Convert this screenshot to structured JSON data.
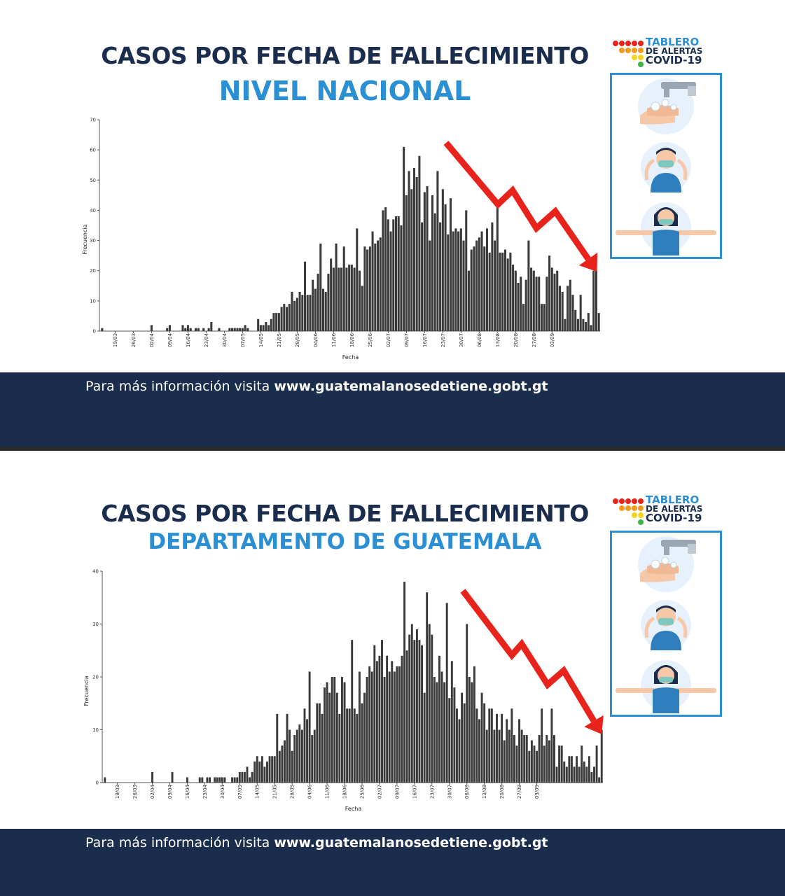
{
  "panels": [
    {
      "title": "CASOS POR FECHA DE FALLECIMIENTO",
      "subtitle": "NIVEL NACIONAL",
      "logo": {
        "line1": "TABLERO",
        "line2": "DE ALERTAS",
        "line3": "COVID-19"
      },
      "icons": [
        "hand-washing-icon",
        "face-mask-icon",
        "social-distancing-icon"
      ],
      "footer": {
        "prefix": "Para más información visita ",
        "url": "www.guatemalanosedetiene.gobt.gt"
      }
    },
    {
      "title": "CASOS POR FECHA DE FALLECIMIENTO",
      "subtitle": "DEPARTAMENTO DE GUATEMALA",
      "logo": {
        "line1": "TABLERO",
        "line2": "DE ALERTAS",
        "line3": "COVID-19"
      },
      "icons": [
        "hand-washing-icon",
        "face-mask-icon",
        "social-distancing-icon"
      ],
      "footer": {
        "prefix": "Para más información visita ",
        "url": "www.guatemalanosedetiene.gobt.gt"
      }
    }
  ],
  "colors": {
    "navy": "#1b2d4c",
    "blue": "#2b8fd3",
    "bar": "#3a3a3a",
    "arrow": "#e8231b"
  },
  "chart_data": [
    {
      "type": "bar",
      "title": "NIVEL NACIONAL",
      "xlabel": "Fecha",
      "ylabel": "Frecuencia",
      "ylim": [
        0,
        70
      ],
      "yticks": [
        0,
        10,
        20,
        30,
        40,
        50,
        60,
        70
      ],
      "x_start": "2020-03-14",
      "xtick_labels": [
        "19/03",
        "26/03",
        "02/04",
        "09/04",
        "16/04",
        "23/04",
        "30/04",
        "07/05",
        "14/05",
        "21/05",
        "28/05",
        "04/06",
        "11/06",
        "18/06",
        "25/06",
        "02/07",
        "09/07",
        "16/07",
        "23/07",
        "30/07",
        "06/08",
        "13/08",
        "20/08",
        "27/08",
        "03/09"
      ],
      "values": [
        1,
        0,
        0,
        0,
        0,
        0,
        0,
        0,
        0,
        0,
        0,
        0,
        0,
        0,
        0,
        0,
        0,
        0,
        0,
        2,
        0,
        0,
        0,
        0,
        0,
        1,
        2,
        0,
        0,
        0,
        0,
        2,
        1,
        2,
        1,
        0,
        1,
        1,
        0,
        1,
        0,
        1,
        3,
        0,
        0,
        1,
        0,
        0,
        0,
        1,
        1,
        1,
        1,
        1,
        1,
        2,
        1,
        0,
        0,
        0,
        4,
        2,
        2,
        3,
        2,
        4,
        6,
        6,
        6,
        8,
        9,
        8,
        9,
        13,
        10,
        11,
        13,
        12,
        23,
        12,
        12,
        17,
        14,
        19,
        29,
        14,
        13,
        19,
        24,
        21,
        29,
        21,
        21,
        28,
        21,
        22,
        22,
        21,
        34,
        20,
        15,
        28,
        27,
        28,
        33,
        29,
        30,
        31,
        40,
        41,
        37,
        33,
        37,
        38,
        38,
        35,
        61,
        45,
        53,
        47,
        54,
        51,
        58,
        36,
        46,
        48,
        30,
        45,
        39,
        53,
        36,
        47,
        42,
        32,
        44,
        33,
        34,
        33,
        34,
        30,
        40,
        20,
        27,
        28,
        30,
        31,
        33,
        28,
        34,
        26,
        36,
        30,
        42,
        26,
        26,
        27,
        24,
        26,
        22,
        20,
        16,
        18,
        9,
        17,
        30,
        21,
        20,
        18,
        18,
        9,
        9,
        18,
        25,
        21,
        19,
        20,
        15,
        13,
        4,
        15,
        17,
        12,
        7,
        4,
        12,
        4,
        3,
        6,
        2,
        20,
        20,
        6
      ]
    },
    {
      "type": "bar",
      "title": "DEPARTAMENTO DE GUATEMALA",
      "xlabel": "Fecha",
      "ylabel": "Frecuencia",
      "ylim": [
        0,
        40
      ],
      "yticks": [
        0,
        10,
        20,
        30,
        40
      ],
      "x_start": "2020-03-14",
      "xtick_labels": [
        "19/03",
        "26/03",
        "02/04",
        "09/04",
        "16/04",
        "23/04",
        "30/04",
        "07/05",
        "14/05",
        "21/05",
        "28/05",
        "04/06",
        "11/06",
        "18/06",
        "25/06",
        "02/07",
        "09/07",
        "16/07",
        "23/07",
        "30/07",
        "06/08",
        "13/08",
        "20/08",
        "27/08",
        "03/09"
      ],
      "values": [
        1,
        0,
        0,
        0,
        0,
        0,
        0,
        0,
        0,
        0,
        0,
        0,
        0,
        0,
        0,
        0,
        0,
        0,
        0,
        2,
        0,
        0,
        0,
        0,
        0,
        0,
        0,
        2,
        0,
        0,
        0,
        0,
        0,
        1,
        0,
        0,
        0,
        0,
        1,
        1,
        0,
        1,
        1,
        0,
        1,
        1,
        1,
        1,
        1,
        0,
        0,
        1,
        1,
        1,
        2,
        2,
        2,
        3,
        1,
        2,
        4,
        5,
        4,
        5,
        3,
        4,
        5,
        5,
        5,
        13,
        6,
        7,
        8,
        13,
        10,
        6,
        9,
        10,
        11,
        10,
        14,
        12,
        21,
        9,
        10,
        15,
        15,
        13,
        18,
        19,
        17,
        20,
        20,
        17,
        13,
        20,
        19,
        14,
        14,
        27,
        14,
        13,
        21,
        15,
        17,
        20,
        22,
        21,
        26,
        23,
        24,
        27,
        20,
        24,
        21,
        23,
        21,
        22,
        22,
        24,
        38,
        25,
        28,
        30,
        27,
        29,
        27,
        26,
        17,
        36,
        30,
        28,
        20,
        19,
        24,
        21,
        19,
        34,
        16,
        23,
        18,
        14,
        12,
        17,
        15,
        30,
        20,
        19,
        22,
        14,
        12,
        17,
        15,
        10,
        14,
        14,
        10,
        13,
        10,
        13,
        8,
        12,
        10,
        14,
        9,
        7,
        12,
        10,
        9,
        9,
        6,
        8,
        7,
        6,
        9,
        14,
        7,
        9,
        8,
        14,
        9,
        3,
        7,
        7,
        4,
        3,
        5,
        5,
        3,
        5,
        3,
        7,
        4,
        3,
        5,
        2,
        3,
        7,
        1,
        10
      ]
    }
  ]
}
